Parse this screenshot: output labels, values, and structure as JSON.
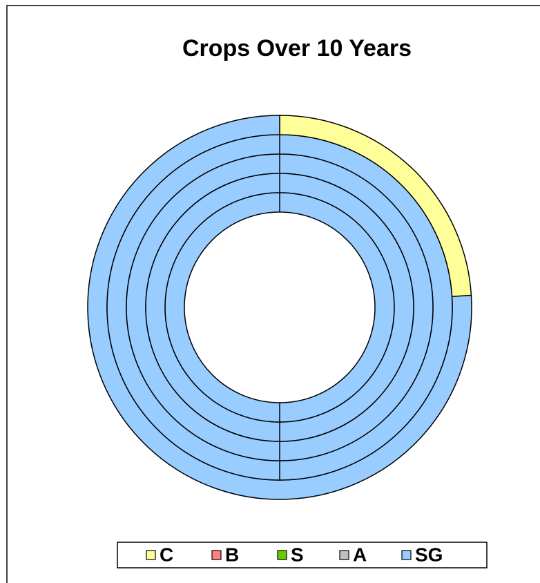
{
  "chart_data": {
    "type": "doughnut",
    "title": "Crops Over 10 Years",
    "categories": [
      "C",
      "B",
      "S",
      "A",
      "SG"
    ],
    "colors": [
      "#ffff99",
      "#ff8080",
      "#66cc00",
      "#c0c0c0",
      "#99ccff"
    ],
    "series": [
      {
        "values": [
          24,
          0,
          0,
          0,
          76
        ]
      },
      {
        "values": [
          0,
          0,
          0,
          0,
          100
        ]
      },
      {
        "values": [
          0,
          0,
          0,
          0,
          100
        ]
      },
      {
        "values": [
          0,
          0,
          0,
          0,
          100
        ]
      },
      {
        "values": [
          0,
          0,
          0,
          0,
          100
        ]
      }
    ],
    "legend": "bottom"
  }
}
